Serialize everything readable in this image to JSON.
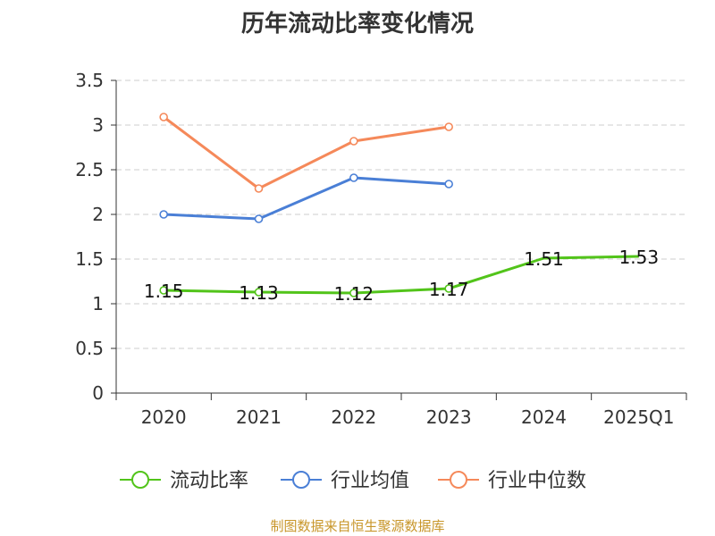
{
  "chart_data": {
    "type": "line",
    "title": "历年流动比率变化情况",
    "categories": [
      "2020",
      "2021",
      "2022",
      "2023",
      "2024",
      "2025Q1"
    ],
    "ylim": [
      0,
      3.5
    ],
    "yticks": [
      "0",
      "0.5",
      "1",
      "1.5",
      "2",
      "2.5",
      "3",
      "3.5"
    ],
    "grid": true,
    "legend_position": "bottom",
    "series": [
      {
        "name": "流动比率",
        "color": "#52c41a",
        "values": [
          1.15,
          1.13,
          1.12,
          1.17,
          1.51,
          1.53
        ],
        "labels": [
          "1.15",
          "1.13",
          "1.12",
          "1.17",
          "1.51",
          "1.53"
        ],
        "show_markers": [
          true,
          true,
          true,
          true,
          false,
          false
        ]
      },
      {
        "name": "行业均值",
        "color": "#4a7fd6",
        "values": [
          2.0,
          1.95,
          2.41,
          2.34,
          null,
          null
        ],
        "show_markers": [
          true,
          true,
          true,
          true,
          false,
          false
        ]
      },
      {
        "name": "行业中位数",
        "color": "#f5895a",
        "values": [
          3.09,
          2.29,
          2.82,
          2.98,
          null,
          null
        ],
        "show_markers": [
          true,
          true,
          true,
          true,
          false,
          false
        ]
      }
    ]
  },
  "source_text": "制图数据来自恒生聚源数据库"
}
